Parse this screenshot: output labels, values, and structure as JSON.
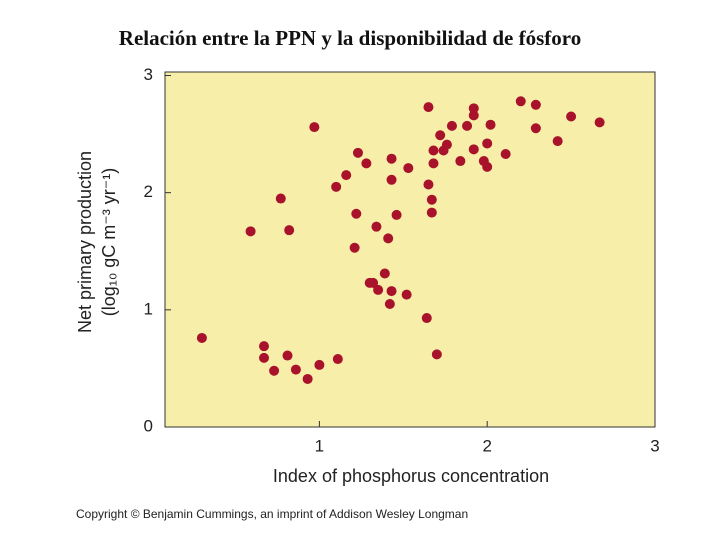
{
  "chart_data": {
    "type": "scatter",
    "title": "Relación entre la PPN y la disponibilidad de fósforo",
    "x_label": "Index of phosphorus concentration",
    "y_label": [
      "Net primary production",
      "(log₁₀ gC m⁻³ yr⁻¹)"
    ],
    "footer": "Copyright © Benjamin Cummings, an imprint of Addison Wesley Longman",
    "color": "#a8122a",
    "background": "#f7eeaa",
    "xlim": [
      0.08,
      3
    ],
    "xticks": [
      1,
      2,
      3
    ],
    "ylim": [
      0,
      3.03
    ],
    "yticks": [
      0,
      1,
      2,
      3
    ],
    "x": [
      0.3,
      0.59,
      0.77,
      0.82,
      0.67,
      0.67,
      0.73,
      0.81,
      0.86,
      0.93,
      1.0,
      1.11,
      0.97,
      1.1,
      1.16,
      1.23,
      1.28,
      1.22,
      1.21,
      1.34,
      1.41,
      1.46,
      1.43,
      1.43,
      1.53,
      1.39,
      1.32,
      1.3,
      1.35,
      1.43,
      1.42,
      1.52,
      1.64,
      1.7,
      1.65,
      1.65,
      1.67,
      1.67,
      1.68,
      1.68,
      1.72,
      1.74,
      1.76,
      1.79,
      1.84,
      1.88,
      1.92,
      1.92,
      1.92,
      1.98,
      2.0,
      2.0,
      2.02,
      2.11,
      2.2,
      2.29,
      2.29,
      2.42,
      2.5,
      2.67
    ],
    "y": [
      0.76,
      1.67,
      1.95,
      1.68,
      0.69,
      0.59,
      0.48,
      0.61,
      0.49,
      0.41,
      0.53,
      0.58,
      2.56,
      2.05,
      2.15,
      2.34,
      2.25,
      1.82,
      1.53,
      1.71,
      1.61,
      1.81,
      2.11,
      2.29,
      2.21,
      1.31,
      1.23,
      1.23,
      1.17,
      1.16,
      1.05,
      1.13,
      0.93,
      0.62,
      2.73,
      2.07,
      1.94,
      1.83,
      2.36,
      2.25,
      2.49,
      2.36,
      2.41,
      2.57,
      2.27,
      2.57,
      2.72,
      2.66,
      2.37,
      2.27,
      2.22,
      2.42,
      2.58,
      2.33,
      2.78,
      2.75,
      2.55,
      2.44,
      2.65,
      2.6
    ]
  }
}
